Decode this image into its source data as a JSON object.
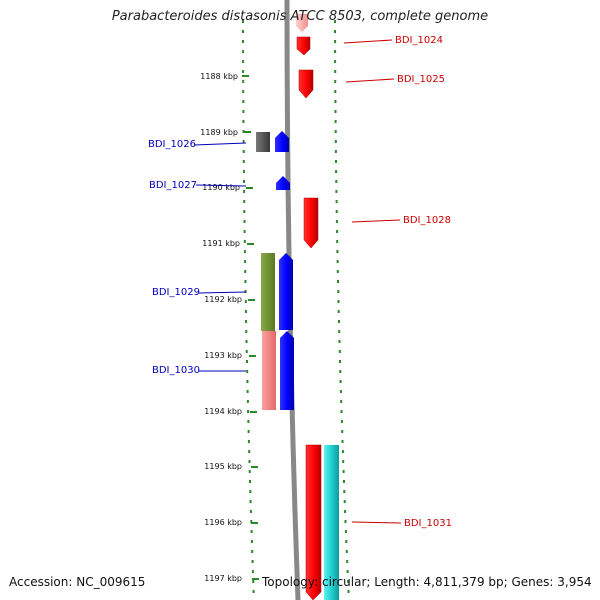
{
  "title": "Parabacteroides distasonis ATCC 8503, complete genome",
  "accession": "Accession: NC_009615",
  "stats": "Topology: circular; Length: 4,811,379 bp; Genes: 3,954",
  "colors": {
    "backbone": "#888888",
    "tick": "#2a8a2a",
    "forward_gene": "#ff0000",
    "reverse_gene": "#0000ff",
    "label_forward": "#cc0000",
    "label_reverse": "#0000bb"
  },
  "ruler_labels": [
    "1188 kbp",
    "1189 kbp",
    "1190 kbp",
    "1191 kbp",
    "1192 kbp",
    "1193 kbp",
    "1194 kbp",
    "1195 kbp",
    "1196 kbp",
    "1197 kbp"
  ],
  "gene_labels": {
    "forward": [
      "BDI_1024",
      "BDI_1025",
      "BDI_1028",
      "BDI_1031"
    ],
    "reverse": [
      "BDI_1026",
      "BDI_1027",
      "BDI_1029",
      "BDI_1030"
    ]
  }
}
